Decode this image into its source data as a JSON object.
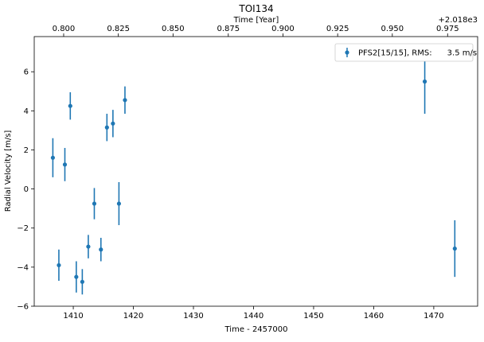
{
  "chart_data": {
    "type": "scatter",
    "title": "TOI134",
    "xlabel": "Time - 2457000",
    "ylabel": "Radial Velocity [m/s]",
    "top_xlabel": "Time [Year]",
    "top_offset_label": "+2.018e3",
    "xlim": [
      1403.5,
      1477.3
    ],
    "ylim": [
      -6,
      7.8
    ],
    "x_ticks": [
      1410,
      1420,
      1430,
      1440,
      1450,
      1460,
      1470
    ],
    "y_ticks": [
      -6,
      -4,
      -2,
      0,
      2,
      4,
      6
    ],
    "top_ticks": [
      {
        "label": "0.800",
        "x": 1408.4
      },
      {
        "label": "0.825",
        "x": 1417.5
      },
      {
        "label": "0.850",
        "x": 1426.6
      },
      {
        "label": "0.875",
        "x": 1435.8
      },
      {
        "label": "0.900",
        "x": 1444.9
      },
      {
        "label": "0.925",
        "x": 1454.0
      },
      {
        "label": "0.950",
        "x": 1463.1
      },
      {
        "label": "0.975",
        "x": 1472.3
      }
    ],
    "legend": {
      "label": "PFS2[15/15], RMS:      3.5 m/s",
      "position": "top-right"
    },
    "color": "#1f77b4",
    "series": [
      {
        "name": "PFS2[15/15], RMS:      3.5 m/s",
        "points": [
          {
            "x": 1406.6,
            "y": 1.6,
            "err": 1.0
          },
          {
            "x": 1407.6,
            "y": -3.9,
            "err": 0.8
          },
          {
            "x": 1408.6,
            "y": 1.25,
            "err": 0.85
          },
          {
            "x": 1409.5,
            "y": 4.25,
            "err": 0.7
          },
          {
            "x": 1410.5,
            "y": -4.5,
            "err": 0.8
          },
          {
            "x": 1411.5,
            "y": -4.75,
            "err": 0.65
          },
          {
            "x": 1412.5,
            "y": -2.95,
            "err": 0.6
          },
          {
            "x": 1413.5,
            "y": -0.75,
            "err": 0.8
          },
          {
            "x": 1414.6,
            "y": -3.1,
            "err": 0.6
          },
          {
            "x": 1415.6,
            "y": 3.15,
            "err": 0.7
          },
          {
            "x": 1416.6,
            "y": 3.35,
            "err": 0.7
          },
          {
            "x": 1417.6,
            "y": -0.75,
            "err": 1.1
          },
          {
            "x": 1418.6,
            "y": 4.55,
            "err": 0.7
          },
          {
            "x": 1468.5,
            "y": 5.5,
            "err": 1.65
          },
          {
            "x": 1473.5,
            "y": -3.05,
            "err": 1.45
          }
        ]
      }
    ]
  }
}
